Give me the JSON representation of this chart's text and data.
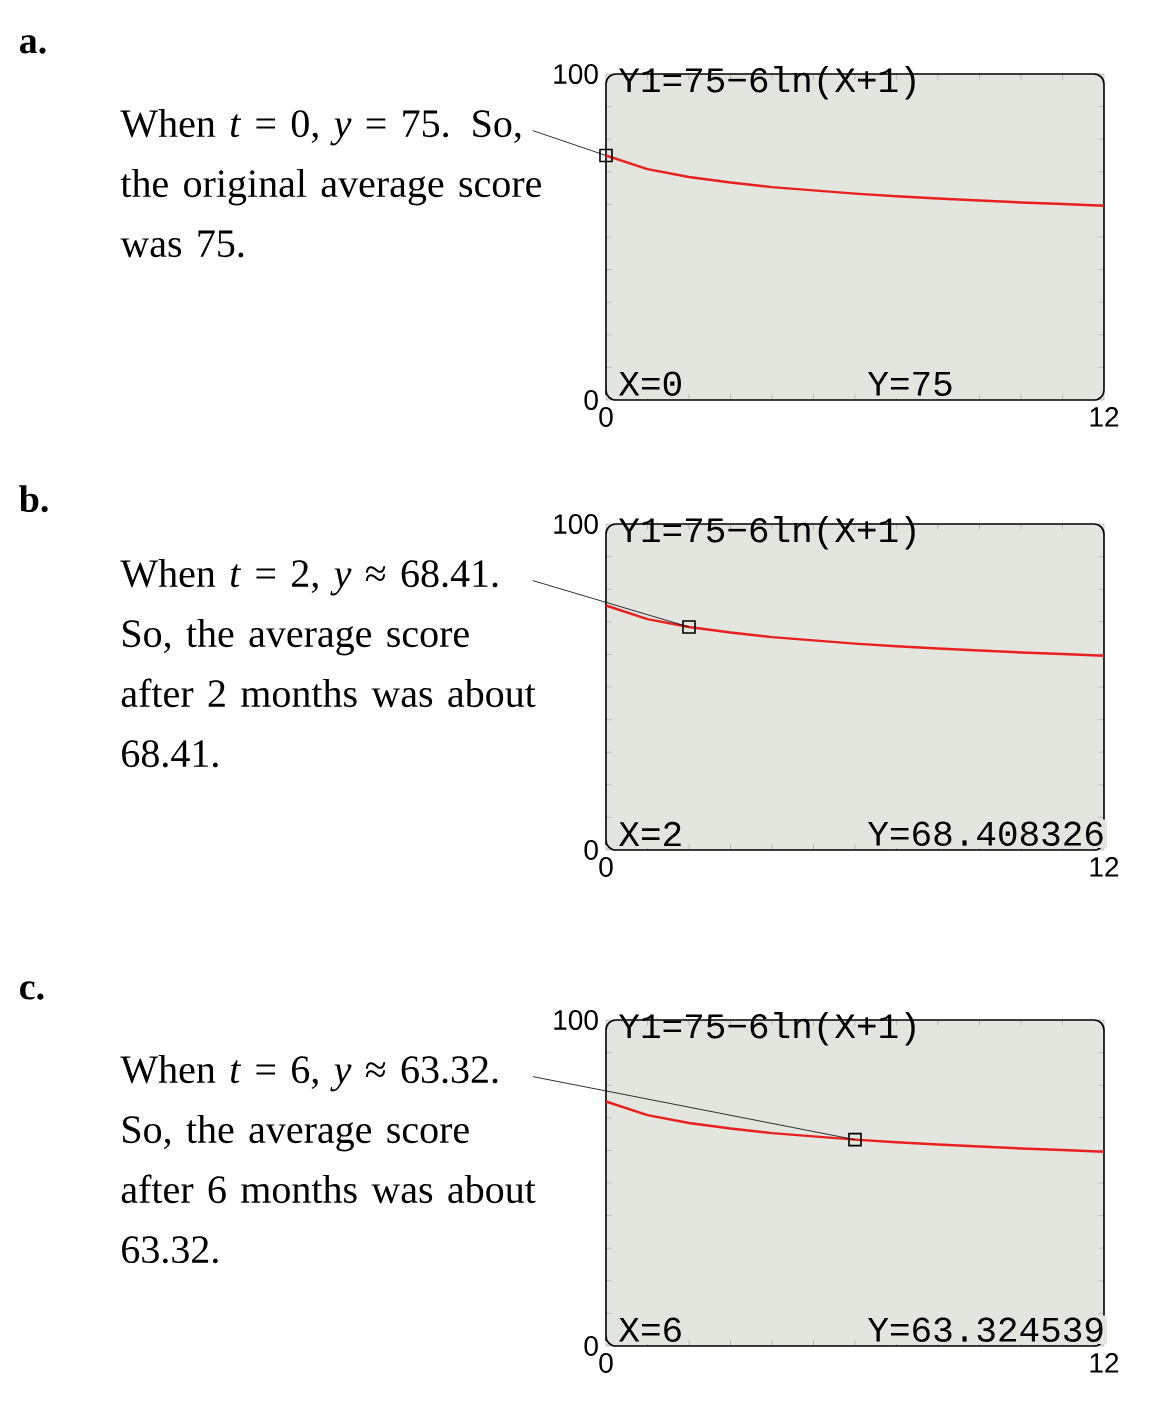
{
  "chart_data": [
    {
      "type": "line",
      "title": "Y1=75−6ln(X+1)",
      "x": [
        0,
        1,
        2,
        3,
        4,
        5,
        6,
        7,
        8,
        9,
        10,
        11,
        12
      ],
      "xlim": [
        0,
        12
      ],
      "ylim": [
        0,
        100
      ],
      "xticks": [
        0,
        12
      ],
      "yticks": [
        0,
        100
      ],
      "series": [
        {
          "color": "#e8211f",
          "values": [
            75,
            70.8,
            68.4,
            66.7,
            65.3,
            64.3,
            63.3,
            62.5,
            61.8,
            61.2,
            60.6,
            60.1,
            59.6
          ]
        },
        {
          "type": "scatter",
          "x": [
            0
          ],
          "values": [
            75
          ],
          "color": "#000000",
          "marker": "square"
        }
      ],
      "annotations": [
        {
          "text": "When *t* = 0, *y* = 75. So, the original average score was 75.",
          "x": 0,
          "y": 75
        },
        "X=0",
        "Y=75",
        "a."
      ]
    },
    {
      "type": "line",
      "title": "Y1=75−6ln(X+1)",
      "x": [
        0,
        1,
        2,
        3,
        4,
        5,
        6,
        7,
        8,
        9,
        10,
        11,
        12
      ],
      "xlim": [
        0,
        12
      ],
      "ylim": [
        0,
        100
      ],
      "xticks": [
        0,
        12
      ],
      "yticks": [
        0,
        100
      ],
      "series": [
        {
          "color": "#e8211f",
          "values": [
            75,
            70.8,
            68.4,
            66.7,
            65.3,
            64.3,
            63.3,
            62.5,
            61.8,
            61.2,
            60.6,
            60.1,
            59.6
          ]
        },
        {
          "type": "scatter",
          "x": [
            2
          ],
          "values": [
            68.4
          ],
          "color": "#000000",
          "marker": "square"
        }
      ],
      "annotations": [
        {
          "text": "When *t* = 2, *y* ≈ 68.41. So, the average score after 2 months was about 68.41.",
          "x": 2,
          "y": 68.4
        },
        "X=2",
        "Y=68.408326",
        "b."
      ]
    },
    {
      "type": "line",
      "title": "Y1=75−6ln(X+1)",
      "x": [
        0,
        1,
        2,
        3,
        4,
        5,
        6,
        7,
        8,
        9,
        10,
        11,
        12
      ],
      "xlim": [
        0,
        12
      ],
      "ylim": [
        0,
        100
      ],
      "xticks": [
        0,
        12
      ],
      "yticks": [
        0,
        100
      ],
      "series": [
        {
          "color": "#e8211f",
          "values": [
            75,
            70.8,
            68.4,
            66.7,
            65.3,
            64.3,
            63.3,
            62.5,
            61.8,
            61.2,
            60.6,
            60.1,
            59.6
          ]
        },
        {
          "type": "scatter",
          "x": [
            6
          ],
          "values": [
            63.3
          ],
          "color": "#000000",
          "marker": "square"
        }
      ],
      "annotations": [
        {
          "text": "When *t* = 6, *y* ≈ 63.32. So, the average score after 6 months was about 63.32.",
          "x": 6,
          "y": 63.3
        },
        "X=6",
        "Y=63.324539",
        "c."
      ]
    }
  ]
}
